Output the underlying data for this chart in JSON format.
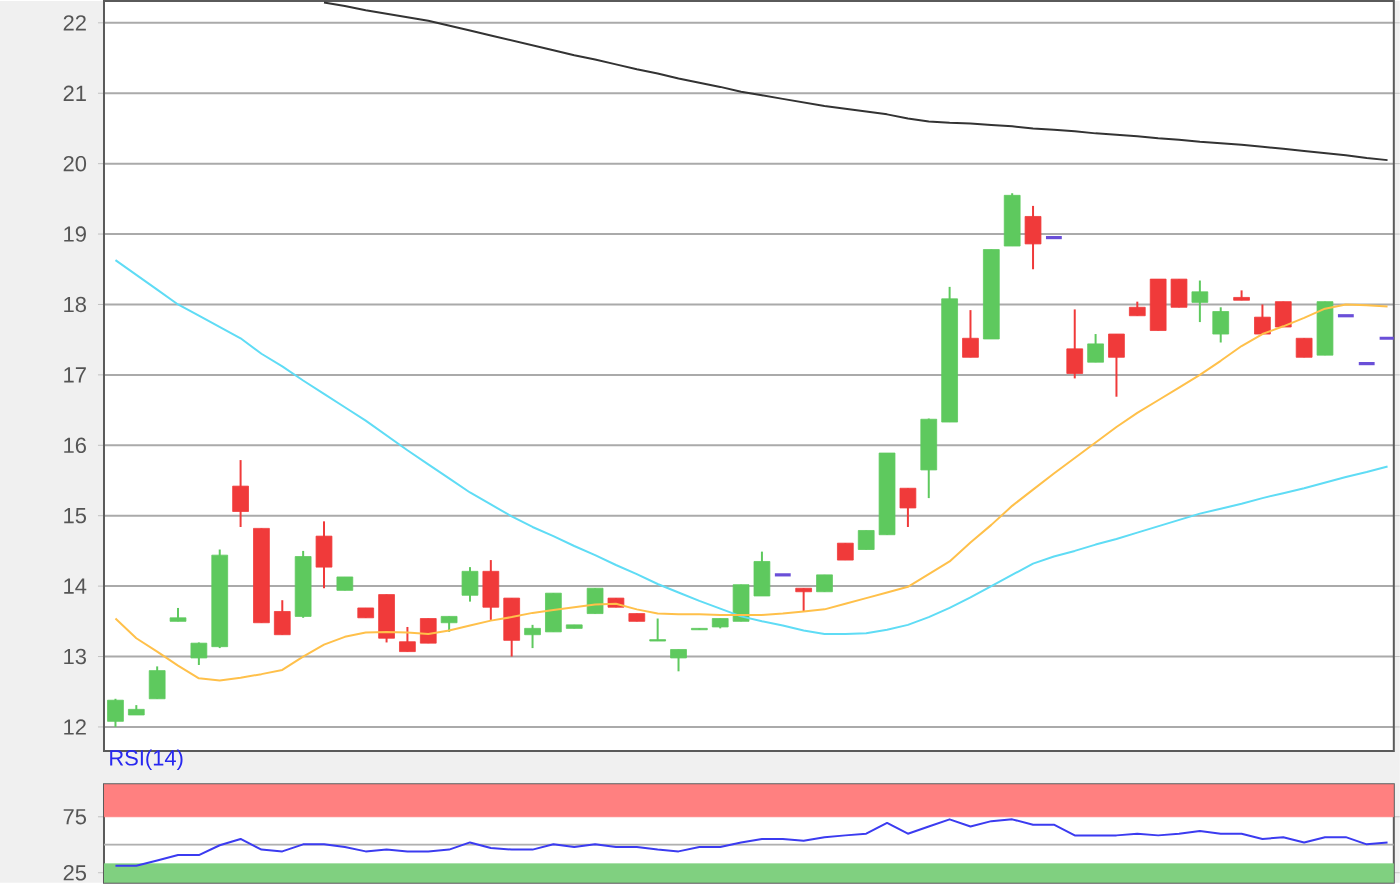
{
  "chart_data": [
    {
      "type": "candlestick",
      "categories": [
        null,
        null,
        null,
        null,
        null,
        null,
        null,
        null,
        null,
        null,
        null,
        null,
        null,
        null,
        null,
        null,
        null,
        null,
        null,
        null,
        null,
        null,
        null,
        null,
        null,
        null,
        null,
        null,
        null,
        null,
        null,
        null,
        null,
        null,
        null,
        null,
        null,
        null,
        null,
        null,
        null,
        null,
        null,
        null,
        null,
        null,
        null,
        null,
        null,
        null,
        null,
        null,
        null,
        null,
        null,
        null,
        null,
        null,
        null,
        null,
        null,
        null
      ],
      "ohlc": [
        [
          12.08,
          12.4,
          12.0,
          12.38
        ],
        [
          12.17,
          12.31,
          12.17,
          12.25
        ],
        [
          12.4,
          12.86,
          12.4,
          12.8
        ],
        [
          13.5,
          13.69,
          13.5,
          13.55
        ],
        [
          12.98,
          13.2,
          12.88,
          13.19
        ],
        [
          13.14,
          14.52,
          13.12,
          14.44
        ],
        [
          15.42,
          15.79,
          14.84,
          15.06
        ],
        [
          14.82,
          14.82,
          13.48,
          13.48
        ],
        [
          13.64,
          13.8,
          13.31,
          13.31
        ],
        [
          13.57,
          14.5,
          13.55,
          14.42
        ],
        [
          14.71,
          14.92,
          13.97,
          14.27
        ],
        [
          13.94,
          14.13,
          13.94,
          14.13
        ],
        [
          13.69,
          13.69,
          13.55,
          13.55
        ],
        [
          13.88,
          13.88,
          13.2,
          13.26
        ],
        [
          13.21,
          13.42,
          13.07,
          13.07
        ],
        [
          13.54,
          13.54,
          13.19,
          13.19
        ],
        [
          13.48,
          13.57,
          13.35,
          13.57
        ],
        [
          13.87,
          14.27,
          13.78,
          14.21
        ],
        [
          14.21,
          14.37,
          13.52,
          13.7
        ],
        [
          13.83,
          13.83,
          13.0,
          13.23
        ],
        [
          13.31,
          13.45,
          13.12,
          13.4
        ],
        [
          13.35,
          13.9,
          13.35,
          13.9
        ],
        [
          13.4,
          13.45,
          13.4,
          13.45
        ],
        [
          13.61,
          13.97,
          13.61,
          13.97
        ],
        [
          13.83,
          13.83,
          13.7,
          13.7
        ],
        [
          13.61,
          13.61,
          13.5,
          13.5
        ],
        [
          13.22,
          13.54,
          13.22,
          13.24
        ],
        [
          12.98,
          13.1,
          12.79,
          13.1
        ],
        [
          13.38,
          13.4,
          13.38,
          13.4
        ],
        [
          13.42,
          13.54,
          13.4,
          13.54
        ],
        [
          13.5,
          14.02,
          13.5,
          14.02
        ],
        [
          13.86,
          14.49,
          13.86,
          14.35
        ],
        [
          14.16,
          14.16,
          14.16,
          14.16
        ],
        [
          13.97,
          13.97,
          13.64,
          13.92
        ],
        [
          13.92,
          14.16,
          13.92,
          14.16
        ],
        [
          14.61,
          14.61,
          14.37,
          14.37
        ],
        [
          14.52,
          14.79,
          14.52,
          14.79
        ],
        [
          14.73,
          15.89,
          14.73,
          15.89
        ],
        [
          15.39,
          15.39,
          14.84,
          15.11
        ],
        [
          15.65,
          16.38,
          15.25,
          16.37
        ],
        [
          16.33,
          18.25,
          16.33,
          18.08
        ],
        [
          17.52,
          17.92,
          17.25,
          17.25
        ],
        [
          17.51,
          18.78,
          17.51,
          18.78
        ],
        [
          18.83,
          19.58,
          18.83,
          19.55
        ],
        [
          19.25,
          19.4,
          18.5,
          18.86
        ],
        [
          18.95,
          18.95,
          18.95,
          18.95
        ],
        [
          17.37,
          17.93,
          16.95,
          17.02
        ],
        [
          17.18,
          17.58,
          17.18,
          17.44
        ],
        [
          17.58,
          17.58,
          16.69,
          17.25
        ],
        [
          17.96,
          18.04,
          17.84,
          17.84
        ],
        [
          18.36,
          18.36,
          17.63,
          17.63
        ],
        [
          18.36,
          18.36,
          17.96,
          17.96
        ],
        [
          18.03,
          18.34,
          17.75,
          18.18
        ],
        [
          17.58,
          17.96,
          17.46,
          17.9
        ],
        [
          18.1,
          18.2,
          18.06,
          18.06
        ],
        [
          17.82,
          18.0,
          17.58,
          17.58
        ],
        [
          18.04,
          18.04,
          17.68,
          17.68
        ],
        [
          17.52,
          17.52,
          17.25,
          17.25
        ],
        [
          17.28,
          18.04,
          17.28,
          18.04
        ],
        [
          17.84,
          17.84,
          17.84,
          17.84
        ],
        [
          17.16,
          17.16,
          17.16,
          17.16
        ],
        [
          17.52,
          17.52,
          17.52,
          17.52
        ]
      ],
      "colors": [
        "#5ec95e",
        "#5ec95e",
        "#5ec95e",
        "#5ec95e",
        "#5ec95e",
        "#5ec95e",
        "#f03a3a",
        "#f03a3a",
        "#f03a3a",
        "#5ec95e",
        "#f03a3a",
        "#5ec95e",
        "#f03a3a",
        "#f03a3a",
        "#f03a3a",
        "#f03a3a",
        "#5ec95e",
        "#5ec95e",
        "#f03a3a",
        "#f03a3a",
        "#5ec95e",
        "#5ec95e",
        "#5ec95e",
        "#5ec95e",
        "#f03a3a",
        "#f03a3a",
        "#5ec95e",
        "#5ec95e",
        "#5ec95e",
        "#5ec95e",
        "#5ec95e",
        "#5ec95e",
        "#6a4fd8",
        "#f03a3a",
        "#5ec95e",
        "#f03a3a",
        "#5ec95e",
        "#5ec95e",
        "#f03a3a",
        "#5ec95e",
        "#5ec95e",
        "#f03a3a",
        "#5ec95e",
        "#5ec95e",
        "#f03a3a",
        "#6a4fd8",
        "#f03a3a",
        "#5ec95e",
        "#f03a3a",
        "#f03a3a",
        "#f03a3a",
        "#f03a3a",
        "#5ec95e",
        "#5ec95e",
        "#f03a3a",
        "#f03a3a",
        "#f03a3a",
        "#f03a3a",
        "#5ec95e",
        "#6a4fd8",
        "#6a4fd8",
        "#6a4fd8"
      ],
      "series": [
        {
          "type": "line",
          "color": "#333333",
          "values": [
            null,
            null,
            null,
            null,
            null,
            null,
            null,
            null,
            null,
            null,
            22.29,
            22.24,
            22.18,
            22.13,
            22.08,
            22.03,
            21.96,
            21.89,
            21.82,
            21.75,
            21.68,
            21.61,
            21.54,
            21.48,
            21.41,
            21.34,
            21.28,
            21.21,
            21.15,
            21.09,
            21.02,
            20.97,
            20.92,
            20.87,
            20.82,
            20.78,
            20.74,
            20.7,
            20.64,
            20.6,
            20.58,
            20.57,
            20.55,
            20.53,
            20.5,
            20.48,
            20.46,
            20.43,
            20.41,
            20.39,
            20.36,
            20.34,
            20.31,
            20.29,
            20.27,
            20.24,
            20.21,
            20.18,
            20.15,
            20.12,
            20.08,
            20.05
          ]
        },
        {
          "type": "line",
          "color": "#5fdcf5",
          "values": [
            18.63,
            18.42,
            18.21,
            18.0,
            17.84,
            17.68,
            17.52,
            17.3,
            17.12,
            16.92,
            16.73,
            16.54,
            16.35,
            16.14,
            15.93,
            15.73,
            15.53,
            15.33,
            15.16,
            14.99,
            14.84,
            14.71,
            14.57,
            14.44,
            14.3,
            14.17,
            14.03,
            13.91,
            13.79,
            13.68,
            13.57,
            13.5,
            13.44,
            13.37,
            13.32,
            13.32,
            13.33,
            13.38,
            13.45,
            13.56,
            13.69,
            13.84,
            14.0,
            14.16,
            14.32,
            14.42,
            14.5,
            14.59,
            14.67,
            14.76,
            14.85,
            14.94,
            15.03,
            15.1,
            15.17,
            15.25,
            15.32,
            15.39,
            15.47,
            15.55,
            15.62,
            15.7
          ]
        },
        {
          "type": "line",
          "color": "#ffc04a",
          "values": [
            13.54,
            13.26,
            13.07,
            12.87,
            12.69,
            12.66,
            12.7,
            12.75,
            12.81,
            13.0,
            13.17,
            13.28,
            13.34,
            13.35,
            13.34,
            13.32,
            13.37,
            13.44,
            13.51,
            13.56,
            13.62,
            13.66,
            13.7,
            13.74,
            13.75,
            13.67,
            13.61,
            13.6,
            13.6,
            13.59,
            13.59,
            13.59,
            13.61,
            13.64,
            13.67,
            13.75,
            13.83,
            13.91,
            13.99,
            14.17,
            14.35,
            14.62,
            14.87,
            15.14,
            15.37,
            15.6,
            15.82,
            16.04,
            16.26,
            16.46,
            16.64,
            16.82,
            17.0,
            17.2,
            17.41,
            17.58,
            17.69,
            17.81,
            17.94,
            18.0,
            17.99,
            17.97
          ]
        }
      ],
      "ylim": [
        11.66,
        22.31
      ],
      "yticks": [
        12,
        13,
        14,
        15,
        16,
        17,
        18,
        19,
        20,
        21,
        22
      ],
      "grid": "y",
      "tick_labels": "y"
    },
    {
      "type": "line",
      "title": "RSI(14)",
      "categories": [
        null,
        null,
        null,
        null,
        null,
        null,
        null,
        null,
        null,
        null,
        null,
        null,
        null,
        null,
        null,
        null,
        null,
        null,
        null,
        null,
        null,
        null,
        null,
        null,
        null,
        null,
        null,
        null,
        null,
        null,
        null,
        null,
        null,
        null,
        null,
        null,
        null,
        null,
        null,
        null,
        null,
        null,
        null,
        null,
        null,
        null,
        null,
        null,
        null,
        null,
        null,
        null,
        null,
        null,
        null,
        null,
        null,
        null,
        null,
        null,
        null,
        null
      ],
      "series": [
        {
          "color": "#3b3bf0",
          "values": [
            31.3,
            31.3,
            36,
            40.8,
            40.8,
            49.6,
            55.2,
            45.7,
            44.1,
            50.4,
            50.4,
            48.0,
            44.1,
            45.7,
            44.1,
            44.1,
            45.7,
            52.1,
            47.2,
            45.7,
            45.7,
            50.4,
            48.0,
            50.4,
            48.0,
            48.0,
            45.7,
            44.1,
            48.0,
            48.0,
            52.1,
            55.2,
            55.2,
            53.6,
            56.8,
            58.4,
            59.9,
            69.5,
            59.9,
            66.3,
            72.7,
            66.3,
            71.1,
            72.7,
            67.9,
            67.9,
            58.4,
            58.4,
            58.4,
            59.9,
            58.4,
            59.9,
            62.3,
            59.9,
            59.9,
            55.2,
            56.8,
            52.1,
            56.8,
            56.8,
            50.4,
            52.1
          ]
        }
      ],
      "bands": [
        {
          "axis": "y",
          "from": 75,
          "to": 104,
          "color": "#ff8080"
        },
        {
          "axis": "y",
          "from": 16,
          "to": 33,
          "color": "#80d080"
        }
      ],
      "ref_lines": [
        {
          "axis": "y",
          "value": 50,
          "color": "#b0b0b0"
        }
      ],
      "ylim": [
        16,
        104
      ],
      "yticks": [
        25,
        75
      ],
      "tick_labels": "y"
    }
  ]
}
